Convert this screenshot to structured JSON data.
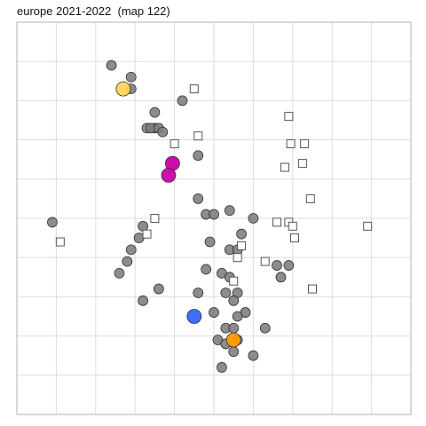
{
  "chart_data": {
    "type": "scatter",
    "title": "europe 2021-2022  (map 122)",
    "xlabel": "",
    "ylabel": "",
    "grid": true,
    "xlim": [
      0,
      10
    ],
    "ylim": [
      0,
      10
    ],
    "series": [
      {
        "marker": "circle",
        "color": "#808080",
        "points": [
          [
            2.4,
            8.9
          ],
          [
            2.9,
            8.6
          ],
          [
            2.9,
            8.3
          ],
          [
            4.2,
            8.0
          ],
          [
            3.5,
            7.7
          ],
          [
            3.3,
            7.3
          ],
          [
            3.5,
            7.3
          ],
          [
            3.4,
            7.3
          ],
          [
            3.6,
            7.3
          ],
          [
            3.7,
            7.2
          ],
          [
            4.6,
            6.6
          ],
          [
            0.9,
            4.9
          ],
          [
            4.6,
            5.5
          ],
          [
            4.8,
            5.1
          ],
          [
            5.0,
            5.1
          ],
          [
            5.4,
            5.2
          ],
          [
            6.0,
            5.0
          ],
          [
            3.2,
            4.8
          ],
          [
            3.1,
            4.5
          ],
          [
            2.9,
            4.2
          ],
          [
            5.7,
            4.6
          ],
          [
            4.9,
            4.4
          ],
          [
            5.4,
            4.2
          ],
          [
            5.6,
            4.2
          ],
          [
            2.8,
            3.9
          ],
          [
            2.6,
            3.6
          ],
          [
            4.8,
            3.7
          ],
          [
            5.2,
            3.6
          ],
          [
            6.6,
            3.8
          ],
          [
            6.9,
            3.8
          ],
          [
            6.7,
            3.5
          ],
          [
            5.4,
            3.5
          ],
          [
            3.6,
            3.2
          ],
          [
            4.6,
            3.1
          ],
          [
            5.3,
            3.1
          ],
          [
            5.6,
            3.1
          ],
          [
            3.2,
            2.9
          ],
          [
            5.5,
            2.9
          ],
          [
            5.0,
            2.6
          ],
          [
            5.8,
            2.6
          ],
          [
            5.6,
            2.5
          ],
          [
            5.3,
            2.2
          ],
          [
            5.5,
            2.2
          ],
          [
            6.3,
            2.2
          ],
          [
            5.1,
            1.9
          ],
          [
            5.3,
            1.8
          ],
          [
            5.6,
            1.9
          ],
          [
            5.5,
            1.6
          ],
          [
            6.0,
            1.5
          ],
          [
            5.2,
            1.2
          ]
        ]
      },
      {
        "marker": "square",
        "color": "#ffffff",
        "points": [
          [
            4.5,
            8.3
          ],
          [
            6.9,
            7.6
          ],
          [
            4.6,
            7.1
          ],
          [
            4.0,
            6.9
          ],
          [
            6.95,
            6.9
          ],
          [
            7.3,
            6.9
          ],
          [
            7.25,
            6.4
          ],
          [
            6.8,
            6.3
          ],
          [
            7.45,
            5.5
          ],
          [
            3.5,
            5.0
          ],
          [
            6.6,
            4.9
          ],
          [
            6.9,
            4.9
          ],
          [
            7.0,
            4.8
          ],
          [
            8.9,
            4.8
          ],
          [
            3.3,
            4.6
          ],
          [
            7.05,
            4.5
          ],
          [
            1.1,
            4.4
          ],
          [
            5.7,
            4.3
          ],
          [
            5.6,
            4.0
          ],
          [
            6.3,
            3.9
          ],
          [
            5.5,
            3.4
          ],
          [
            7.5,
            3.2
          ]
        ]
      },
      {
        "marker": "circle",
        "color": "#ffd55a",
        "points": [
          [
            2.7,
            8.3
          ]
        ]
      },
      {
        "marker": "circle",
        "color": "#cc00aa",
        "points": [
          [
            3.95,
            6.4
          ],
          [
            3.85,
            6.1
          ]
        ]
      },
      {
        "marker": "circle",
        "color": "#3366ff",
        "points": [
          [
            4.5,
            2.5
          ]
        ]
      },
      {
        "marker": "circle",
        "color": "#ff9900",
        "points": [
          [
            5.5,
            1.9
          ]
        ]
      }
    ]
  }
}
